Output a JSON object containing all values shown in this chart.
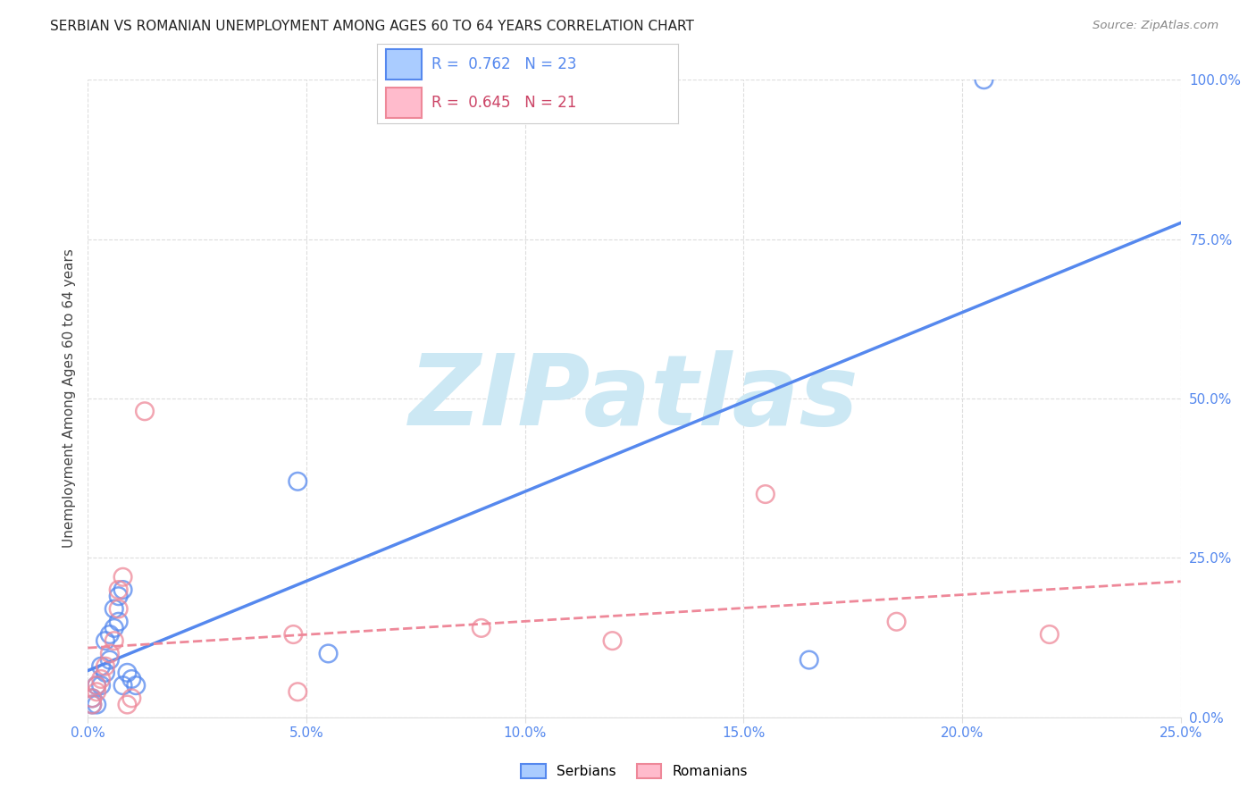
{
  "title": "SERBIAN VS ROMANIAN UNEMPLOYMENT AMONG AGES 60 TO 64 YEARS CORRELATION CHART",
  "source": "Source: ZipAtlas.com",
  "ylabel": "Unemployment Among Ages 60 to 64 years",
  "xlim": [
    0.0,
    0.25
  ],
  "ylim": [
    0.0,
    1.0
  ],
  "xticks": [
    0.0,
    0.05,
    0.1,
    0.15,
    0.2,
    0.25
  ],
  "yticks": [
    0.0,
    0.25,
    0.5,
    0.75,
    1.0
  ],
  "xtick_labels": [
    "0.0%",
    "5.0%",
    "10.0%",
    "15.0%",
    "20.0%",
    "25.0%"
  ],
  "ytick_labels": [
    "0.0%",
    "25.0%",
    "50.0%",
    "75.0%",
    "100.0%"
  ],
  "serbian_color": "#5588ee",
  "romanian_color": "#ee8899",
  "serbian_face": "#aaccff",
  "romanian_face": "#ffbbcc",
  "serbian_R": 0.762,
  "serbian_N": 23,
  "romanian_R": 0.645,
  "romanian_N": 21,
  "watermark": "ZIPatlas",
  "watermark_color": "#cce8f4",
  "axis_color": "#5588ee",
  "grid_color": "#dddddd",
  "title_color": "#222222",
  "source_color": "#888888",
  "serbian_x": [
    0.001,
    0.001,
    0.002,
    0.002,
    0.003,
    0.003,
    0.004,
    0.004,
    0.005,
    0.005,
    0.006,
    0.006,
    0.007,
    0.007,
    0.008,
    0.008,
    0.009,
    0.01,
    0.011,
    0.048,
    0.055,
    0.165,
    0.205
  ],
  "serbian_y": [
    0.02,
    0.03,
    0.02,
    0.05,
    0.05,
    0.08,
    0.07,
    0.12,
    0.09,
    0.13,
    0.14,
    0.17,
    0.15,
    0.19,
    0.2,
    0.05,
    0.07,
    0.06,
    0.05,
    0.37,
    0.1,
    0.09,
    1.0
  ],
  "romanian_x": [
    0.001,
    0.001,
    0.002,
    0.002,
    0.003,
    0.004,
    0.005,
    0.006,
    0.007,
    0.007,
    0.008,
    0.009,
    0.01,
    0.013,
    0.047,
    0.048,
    0.09,
    0.12,
    0.155,
    0.185,
    0.22
  ],
  "romanian_y": [
    0.02,
    0.03,
    0.04,
    0.05,
    0.06,
    0.08,
    0.1,
    0.12,
    0.17,
    0.2,
    0.22,
    0.02,
    0.03,
    0.48,
    0.13,
    0.04,
    0.14,
    0.12,
    0.35,
    0.15,
    0.13
  ]
}
